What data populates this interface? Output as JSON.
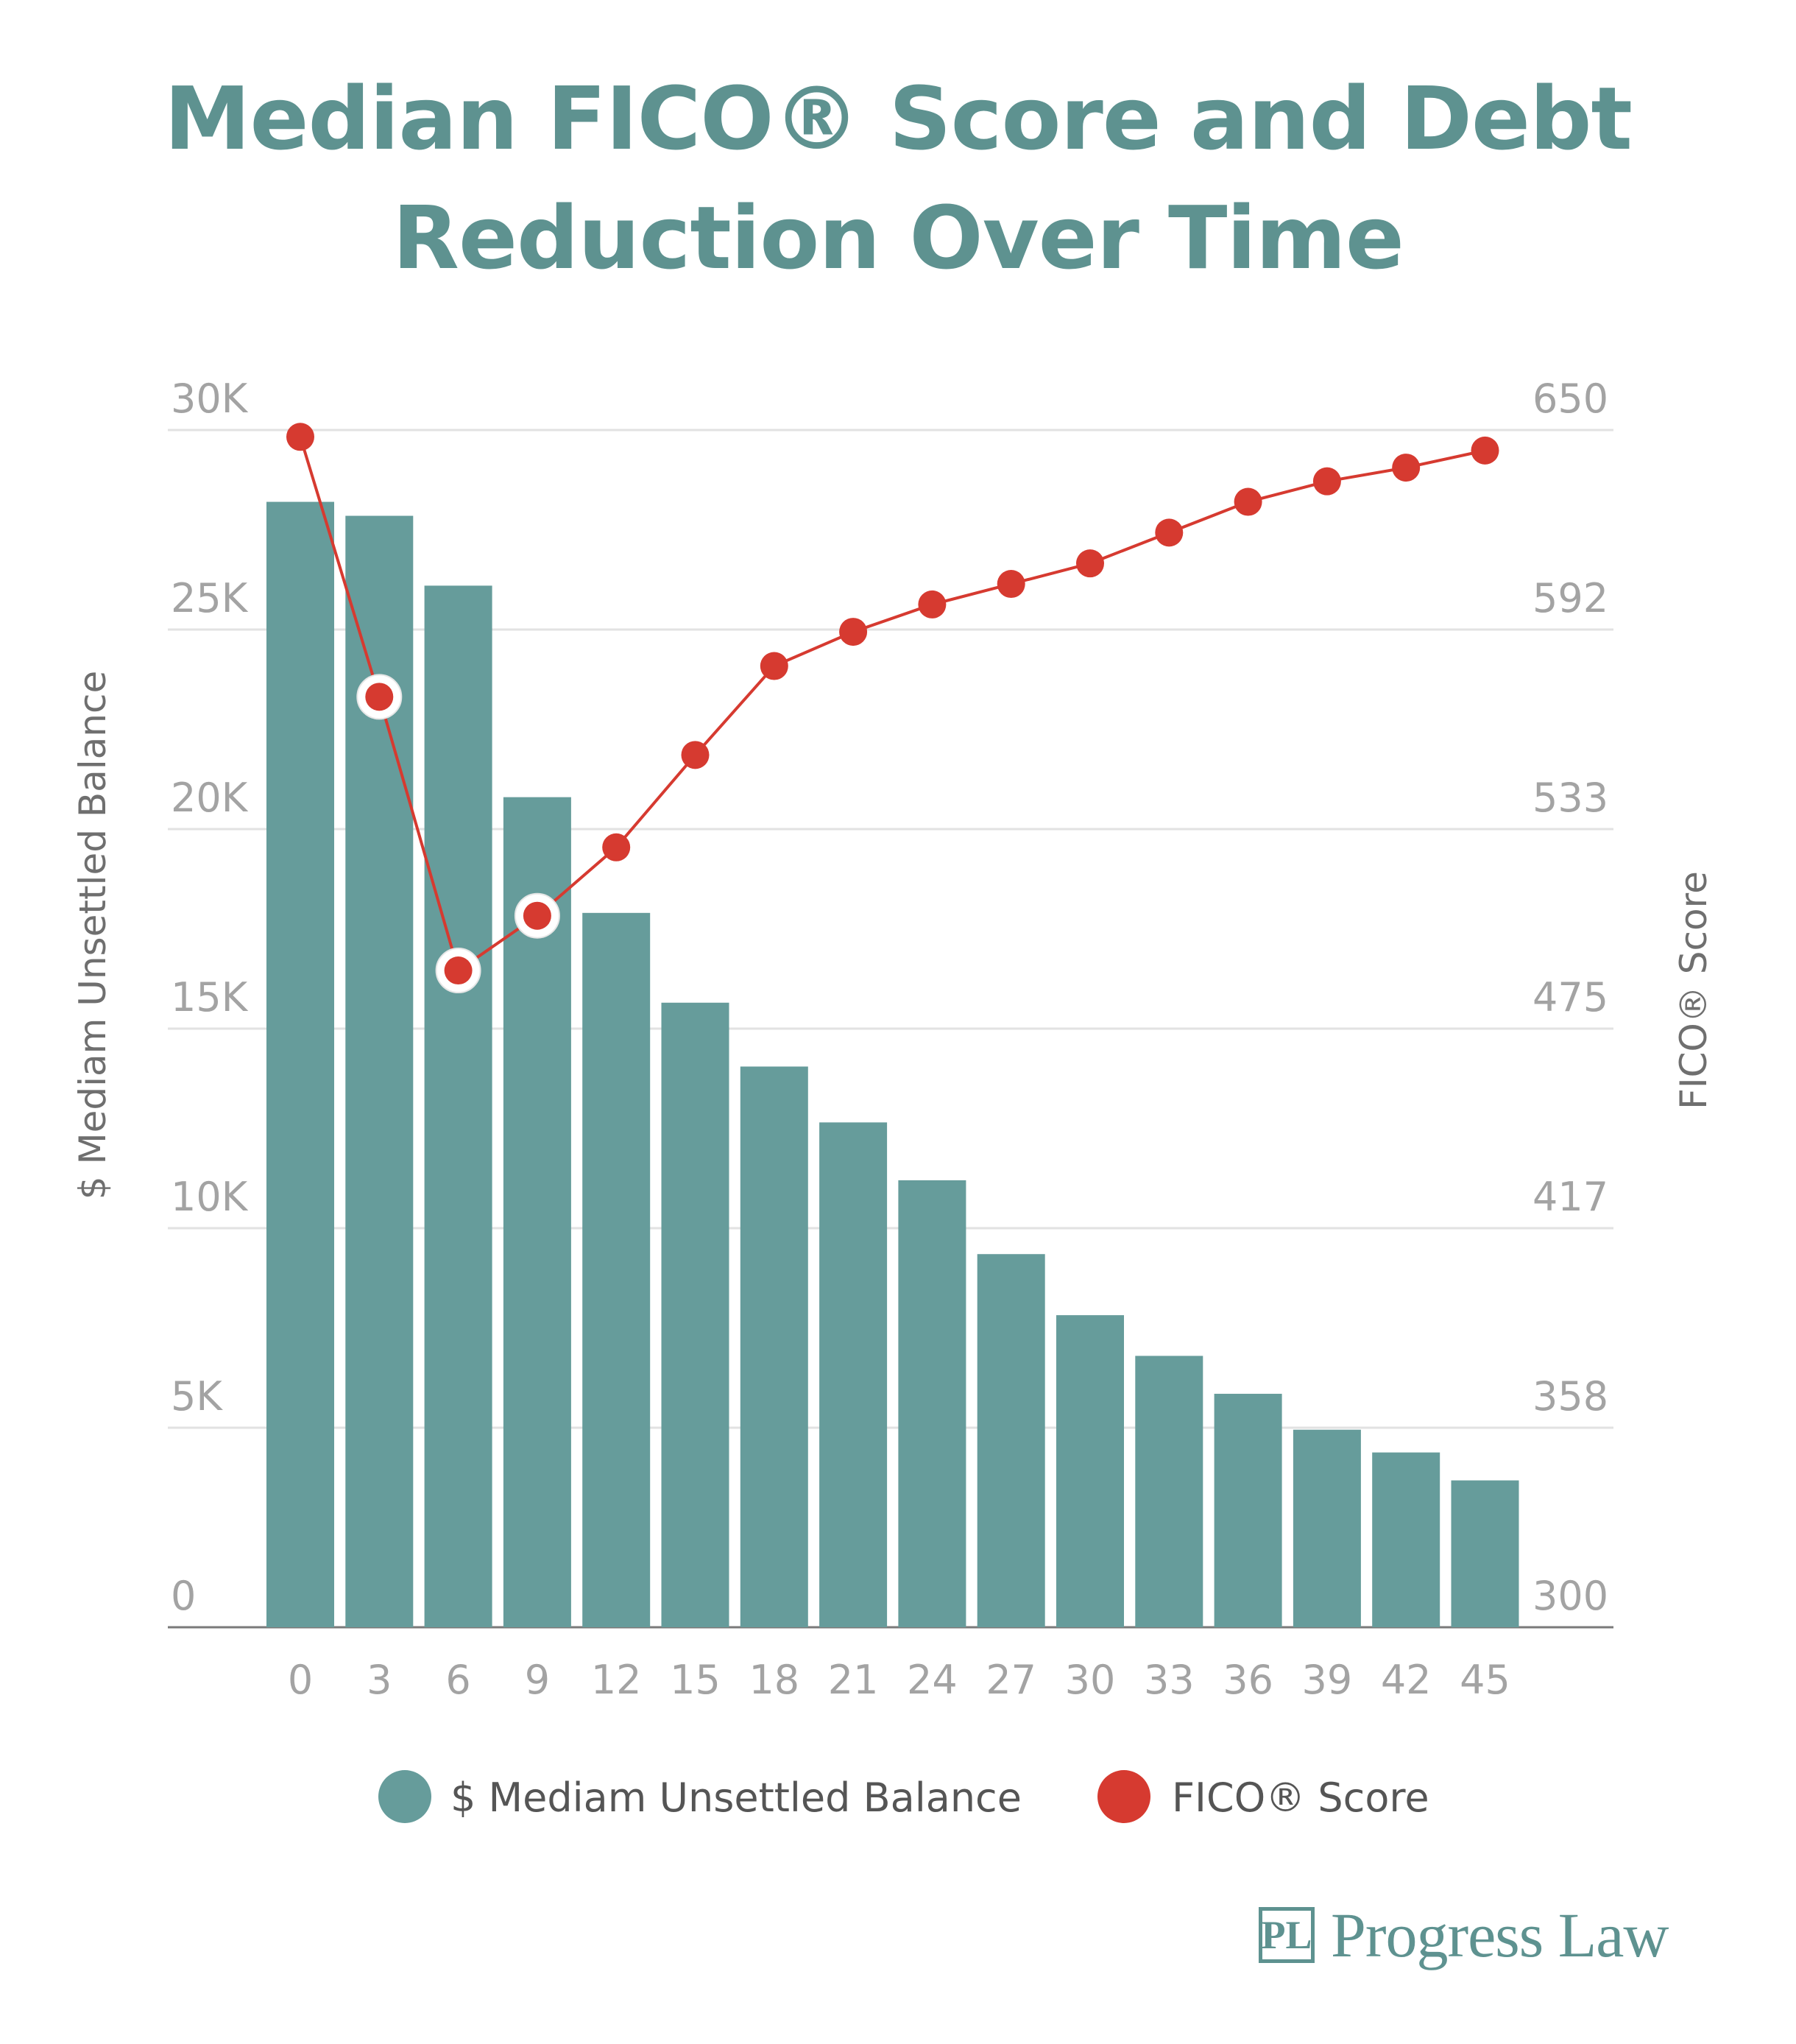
{
  "title_line1": "Median FICO® Score and Debt",
  "title_line2": "Reduction Over Time",
  "logo": {
    "mark": "PL",
    "text": "Progress Law"
  },
  "colors": {
    "bars": "#669c9b",
    "line": "#d63a30",
    "grid": "#e2e2e2",
    "title": "#5e9290"
  },
  "chart_data": {
    "type": "bar",
    "categories": [
      "0",
      "3",
      "6",
      "9",
      "12",
      "15",
      "18",
      "21",
      "24",
      "27",
      "30",
      "33",
      "36",
      "39",
      "42",
      "45"
    ],
    "series": [
      {
        "name": "$ Mediam Unsettled Balance",
        "type": "bar",
        "axis": "left",
        "values": [
          28200,
          27850,
          26100,
          20800,
          17900,
          15650,
          14050,
          12650,
          11200,
          9350,
          7820,
          6800,
          5850,
          4950,
          4380,
          3680
        ]
      },
      {
        "name": "FICO® Score",
        "type": "line",
        "axis": "right",
        "values": [
          648,
          572,
          492,
          508,
          528,
          555,
          581,
          591,
          599,
          605,
          611,
          620,
          629,
          635,
          639,
          644
        ],
        "highlighted_indices": [
          1,
          2,
          3
        ]
      }
    ],
    "left_axis": {
      "label": "$ Mediam Unsettled Balance",
      "min": 0,
      "max": 30000,
      "ticks": [
        0,
        5000,
        10000,
        15000,
        20000,
        25000,
        30000
      ],
      "tick_labels": [
        "0",
        "5K",
        "10K",
        "15K",
        "20K",
        "25K",
        "30K"
      ]
    },
    "right_axis": {
      "label": "FICO® Score",
      "min": 300,
      "max": 650,
      "tick_labels": [
        "300",
        "358",
        "417",
        "475",
        "533",
        "592",
        "650"
      ]
    },
    "grid": true,
    "legend_position": "bottom"
  }
}
